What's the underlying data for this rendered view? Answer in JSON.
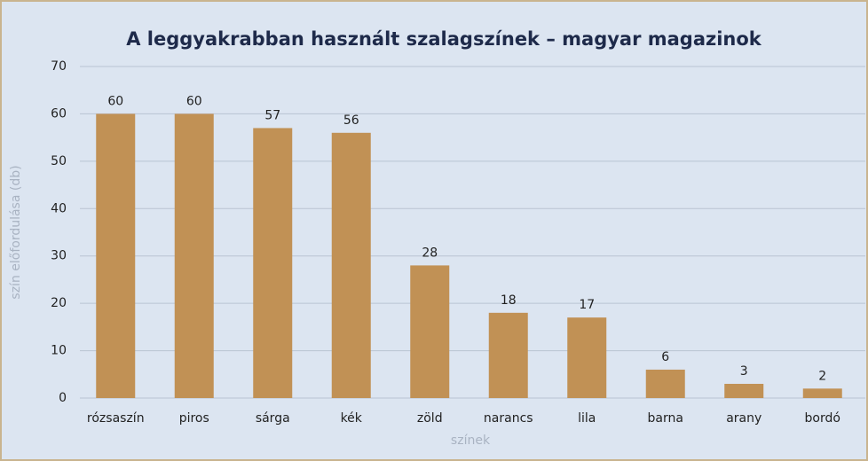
{
  "chart_data": {
    "type": "bar",
    "title": "A leggyakrabban használt szalagszínek – magyar magazinok",
    "x_label": "színek",
    "y_label": "szín előfordulása (db)",
    "categories": [
      "rózsaszín",
      "piros",
      "sárga",
      "kék",
      "zöld",
      "narancs",
      "lila",
      "barna",
      "arany",
      "bordó"
    ],
    "values": [
      60,
      60,
      57,
      56,
      28,
      18,
      17,
      6,
      3,
      2
    ],
    "color": "#c19155",
    "ylim": [
      0,
      70
    ],
    "yticks": [
      0,
      10,
      20,
      30,
      40,
      50,
      60,
      70
    ],
    "grid": true
  }
}
